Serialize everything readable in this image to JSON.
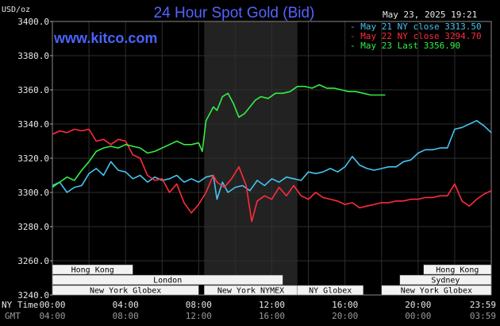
{
  "window": {
    "title": "24 Hour Spot Gold (Bid)",
    "site": "www.kitco.com",
    "date_stamp": "May 23, 2025 19:21"
  },
  "colors": {
    "bg": "#000000",
    "plot_bg": "#000000",
    "highlight_band": "#222222",
    "grid": "#2e2e2e",
    "may21": "#44c4f0",
    "may22": "#ff2b3c",
    "may23": "#33ee44",
    "session_bar": "#f2f2f2"
  },
  "chart_data": {
    "type": "line",
    "title": "24 Hour Spot Gold (Bid)",
    "ylabel": "USD/oz",
    "ylim": [
      3240,
      3400
    ],
    "yticks": [
      "3400.0",
      "3380.0",
      "3360.0",
      "3340.0",
      "3320.0",
      "3300.0",
      "3280.0",
      "3260.0",
      "3240.0"
    ],
    "ytick_values": [
      3400,
      3380,
      3360,
      3340,
      3320,
      3300,
      3280,
      3260,
      3240
    ],
    "xlim": [
      0,
      24
    ],
    "x_axis_label_ny": "NY Time",
    "x_axis_label_gmt": "GMT",
    "xticks_ny": [
      "00:00",
      "04:00",
      "08:00",
      "12:00",
      "16:00",
      "20:00",
      "23:59"
    ],
    "xticks_gmt": [
      "04:00",
      "08:00",
      "12:00",
      "16:00",
      "20:00",
      "00:00",
      "03:59"
    ],
    "xtick_values": [
      0,
      4,
      8,
      12,
      16,
      20,
      24
    ],
    "grid": true,
    "highlight_range": [
      8.3,
      13.4
    ],
    "legend": [
      {
        "label": "May 21 NY close 3313.50",
        "color": "#44c4f0"
      },
      {
        "label": "May 22 NY close 3294.70",
        "color": "#ff2b3c"
      },
      {
        "label": "May 23 Last 3356.90",
        "color": "#33ee44"
      }
    ],
    "series": [
      {
        "name": "May 21 NY close 3313.50",
        "color": "#44c4f0",
        "points": [
          [
            0,
            3304
          ],
          [
            0.4,
            3306
          ],
          [
            0.8,
            3300
          ],
          [
            1.2,
            3303
          ],
          [
            1.6,
            3304
          ],
          [
            2.0,
            3311
          ],
          [
            2.4,
            3314
          ],
          [
            2.8,
            3310
          ],
          [
            3.2,
            3318
          ],
          [
            3.6,
            3313
          ],
          [
            4.0,
            3312
          ],
          [
            4.4,
            3308
          ],
          [
            4.8,
            3310
          ],
          [
            5.2,
            3306
          ],
          [
            5.6,
            3309
          ],
          [
            6.0,
            3307
          ],
          [
            6.4,
            3308
          ],
          [
            6.8,
            3310
          ],
          [
            7.2,
            3306
          ],
          [
            7.6,
            3308
          ],
          [
            8.0,
            3306
          ],
          [
            8.4,
            3309
          ],
          [
            8.8,
            3310
          ],
          [
            9.0,
            3296
          ],
          [
            9.3,
            3306
          ],
          [
            9.6,
            3300
          ],
          [
            10.0,
            3303
          ],
          [
            10.4,
            3304
          ],
          [
            10.8,
            3301
          ],
          [
            11.2,
            3307
          ],
          [
            11.6,
            3304
          ],
          [
            12.0,
            3308
          ],
          [
            12.4,
            3306
          ],
          [
            12.8,
            3309
          ],
          [
            13.2,
            3308
          ],
          [
            13.6,
            3307
          ],
          [
            14.0,
            3312
          ],
          [
            14.4,
            3311
          ],
          [
            14.8,
            3312
          ],
          [
            15.2,
            3314
          ],
          [
            15.6,
            3312
          ],
          [
            16.0,
            3315
          ],
          [
            16.4,
            3321
          ],
          [
            16.8,
            3316
          ],
          [
            17.2,
            3314
          ],
          [
            17.6,
            3313
          ],
          [
            18.0,
            3314
          ],
          [
            18.4,
            3315
          ],
          [
            18.8,
            3315
          ],
          [
            19.2,
            3318
          ],
          [
            19.6,
            3319
          ],
          [
            20.0,
            3323
          ],
          [
            20.4,
            3325
          ],
          [
            20.8,
            3325
          ],
          [
            21.2,
            3326
          ],
          [
            21.6,
            3326
          ],
          [
            22.0,
            3337
          ],
          [
            22.4,
            3338
          ],
          [
            22.8,
            3340
          ],
          [
            23.2,
            3342
          ],
          [
            23.6,
            3339
          ],
          [
            24.0,
            3335
          ]
        ]
      },
      {
        "name": "May 22 NY close 3294.70",
        "color": "#ff2b3c",
        "points": [
          [
            0,
            3334
          ],
          [
            0.4,
            3336
          ],
          [
            0.8,
            3335
          ],
          [
            1.2,
            3337
          ],
          [
            1.6,
            3336
          ],
          [
            2.0,
            3337
          ],
          [
            2.4,
            3330
          ],
          [
            2.8,
            3331
          ],
          [
            3.2,
            3328
          ],
          [
            3.6,
            3331
          ],
          [
            4.0,
            3330
          ],
          [
            4.4,
            3322
          ],
          [
            4.8,
            3320
          ],
          [
            5.2,
            3310
          ],
          [
            5.6,
            3307
          ],
          [
            6.0,
            3308
          ],
          [
            6.4,
            3300
          ],
          [
            6.8,
            3305
          ],
          [
            7.2,
            3294
          ],
          [
            7.6,
            3288
          ],
          [
            8.0,
            3293
          ],
          [
            8.4,
            3300
          ],
          [
            8.8,
            3310
          ],
          [
            9.0,
            3306
          ],
          [
            9.4,
            3303
          ],
          [
            9.8,
            3308
          ],
          [
            10.2,
            3315
          ],
          [
            10.6,
            3304
          ],
          [
            10.9,
            3283
          ],
          [
            11.2,
            3295
          ],
          [
            11.6,
            3298
          ],
          [
            12.0,
            3296
          ],
          [
            12.4,
            3303
          ],
          [
            12.8,
            3298
          ],
          [
            13.2,
            3304
          ],
          [
            13.6,
            3298
          ],
          [
            14.0,
            3296
          ],
          [
            14.4,
            3300
          ],
          [
            14.8,
            3297
          ],
          [
            15.2,
            3296
          ],
          [
            15.6,
            3295
          ],
          [
            16.0,
            3293
          ],
          [
            16.4,
            3294
          ],
          [
            16.8,
            3291
          ],
          [
            17.2,
            3292
          ],
          [
            17.6,
            3293
          ],
          [
            18.0,
            3294
          ],
          [
            18.4,
            3294
          ],
          [
            18.8,
            3295
          ],
          [
            19.2,
            3295
          ],
          [
            19.6,
            3296
          ],
          [
            20.0,
            3296
          ],
          [
            20.4,
            3297
          ],
          [
            20.8,
            3297
          ],
          [
            21.2,
            3298
          ],
          [
            21.6,
            3298
          ],
          [
            22.0,
            3305
          ],
          [
            22.4,
            3295
          ],
          [
            22.8,
            3292
          ],
          [
            23.2,
            3296
          ],
          [
            23.6,
            3299
          ],
          [
            24.0,
            3301
          ]
        ]
      },
      {
        "name": "May 23 Last 3356.90",
        "color": "#33ee44",
        "points": [
          [
            0,
            3303
          ],
          [
            0.4,
            3306
          ],
          [
            0.8,
            3309
          ],
          [
            1.2,
            3307
          ],
          [
            1.6,
            3313
          ],
          [
            2.0,
            3318
          ],
          [
            2.4,
            3324
          ],
          [
            2.8,
            3326
          ],
          [
            3.2,
            3327
          ],
          [
            3.6,
            3326
          ],
          [
            4.0,
            3328
          ],
          [
            4.4,
            3327
          ],
          [
            4.8,
            3326
          ],
          [
            5.2,
            3323
          ],
          [
            5.6,
            3324
          ],
          [
            6.0,
            3326
          ],
          [
            6.4,
            3328
          ],
          [
            6.8,
            3330
          ],
          [
            7.2,
            3328
          ],
          [
            7.6,
            3328
          ],
          [
            8.0,
            3329
          ],
          [
            8.2,
            3324
          ],
          [
            8.4,
            3342
          ],
          [
            8.8,
            3350
          ],
          [
            9.0,
            3348
          ],
          [
            9.3,
            3356
          ],
          [
            9.6,
            3358
          ],
          [
            9.9,
            3352
          ],
          [
            10.2,
            3344
          ],
          [
            10.5,
            3346
          ],
          [
            10.8,
            3350
          ],
          [
            11.1,
            3354
          ],
          [
            11.4,
            3356
          ],
          [
            11.8,
            3355
          ],
          [
            12.2,
            3358
          ],
          [
            12.6,
            3358
          ],
          [
            13.0,
            3359
          ],
          [
            13.4,
            3362
          ],
          [
            13.8,
            3362
          ],
          [
            14.2,
            3361
          ],
          [
            14.6,
            3363
          ],
          [
            15.0,
            3361
          ],
          [
            15.4,
            3361
          ],
          [
            15.8,
            3360
          ],
          [
            16.2,
            3359
          ],
          [
            16.6,
            3359
          ],
          [
            17.0,
            3358
          ],
          [
            17.4,
            3357
          ],
          [
            17.8,
            3357
          ],
          [
            18.2,
            3357
          ]
        ]
      }
    ],
    "sessions": [
      {
        "label": "Hong Kong",
        "start": 0,
        "end": 4.4,
        "row": 0
      },
      {
        "label": "London",
        "start": 0,
        "end": 12.6,
        "row": 1
      },
      {
        "label": "New York Globex",
        "start": 0,
        "end": 8.0,
        "row": 2
      },
      {
        "label": "New York NYMEX",
        "start": 8.3,
        "end": 13.4,
        "row": 2
      },
      {
        "label": "NY Globex",
        "start": 13.4,
        "end": 17.0,
        "row": 2
      },
      {
        "label": "Hong Kong",
        "start": 20.3,
        "end": 24,
        "row": 0
      },
      {
        "label": "Sydney",
        "start": 19.0,
        "end": 24,
        "row": 1
      },
      {
        "label": "New York Globex",
        "start": 18.0,
        "end": 24,
        "row": 2
      }
    ]
  }
}
